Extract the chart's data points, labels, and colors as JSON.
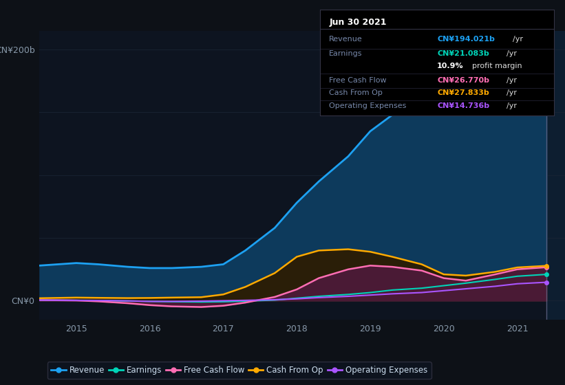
{
  "background_color": "#0d1117",
  "plot_bg_color": "#0d1420",
  "years": [
    2014.5,
    2015.0,
    2015.3,
    2015.7,
    2016.0,
    2016.3,
    2016.7,
    2017.0,
    2017.3,
    2017.7,
    2018.0,
    2018.3,
    2018.7,
    2019.0,
    2019.3,
    2019.7,
    2020.0,
    2020.3,
    2020.7,
    2021.0,
    2021.4
  ],
  "revenue": [
    28,
    30,
    29,
    27,
    26,
    26,
    27,
    29,
    40,
    58,
    78,
    95,
    115,
    135,
    148,
    158,
    163,
    170,
    182,
    192,
    194
  ],
  "earnings": [
    0.5,
    0.3,
    0.2,
    -0.2,
    -0.5,
    -0.8,
    -1.0,
    -0.8,
    -0.3,
    0.5,
    2.0,
    3.5,
    5.0,
    6.5,
    8.5,
    10.0,
    12.0,
    14.0,
    17.0,
    19.5,
    21
  ],
  "free_cash_flow": [
    0.5,
    0.2,
    -0.5,
    -2.0,
    -3.5,
    -4.5,
    -5.0,
    -4.0,
    -1.5,
    3.0,
    9.0,
    18.0,
    25.0,
    28.0,
    27.0,
    24.0,
    18.0,
    16.0,
    21.0,
    25.0,
    26.7
  ],
  "cash_from_op": [
    2.0,
    2.5,
    2.3,
    2.1,
    2.2,
    2.5,
    2.8,
    5.0,
    11.0,
    22.0,
    35.0,
    40.0,
    41.0,
    39.0,
    35.0,
    29.0,
    21.0,
    20.0,
    23.0,
    26.5,
    27.8
  ],
  "operating_expenses": [
    0.5,
    0.3,
    0.2,
    -0.1,
    -0.5,
    -0.5,
    -0.3,
    0.0,
    0.3,
    0.8,
    1.5,
    2.5,
    3.5,
    4.5,
    5.5,
    6.5,
    8.0,
    9.5,
    11.5,
    13.5,
    14.7
  ],
  "revenue_color": "#1da1f2",
  "earnings_color": "#00d4b8",
  "free_cash_flow_color": "#ff6eb4",
  "cash_from_op_color": "#ffaa00",
  "operating_expenses_color": "#aa55ff",
  "revenue_fill_color": "#0d3a5c",
  "free_cash_flow_fill_color": "#4a1a35",
  "cash_from_op_fill_color": "#2a1e08",
  "xlim": [
    2014.5,
    2021.65
  ],
  "ylim": [
    -15,
    215
  ],
  "xticks": [
    2015,
    2016,
    2017,
    2018,
    2019,
    2020,
    2021
  ],
  "legend_labels": [
    "Revenue",
    "Earnings",
    "Free Cash Flow",
    "Cash From Op",
    "Operating Expenses"
  ],
  "legend_colors": [
    "#1da1f2",
    "#00d4b8",
    "#ff6eb4",
    "#ffaa00",
    "#aa55ff"
  ],
  "tooltip_x": 2021.4,
  "grid_color": "#1a2535",
  "highlight_bg_color": "#0d1e30",
  "tooltip_title": "Jun 30 2021",
  "tooltip_rows": [
    {
      "label": "Revenue",
      "value": "CN¥194.021b",
      "value_color": "#1da1f2",
      "suffix": " /yr"
    },
    {
      "label": "Earnings",
      "value": "CN¥21.083b",
      "value_color": "#00d4b8",
      "suffix": " /yr"
    },
    {
      "label": "",
      "value": "10.9%",
      "value_color": "#ffffff",
      "suffix": " profit margin"
    },
    {
      "label": "Free Cash Flow",
      "value": "CN¥26.770b",
      "value_color": "#ff6eb4",
      "suffix": " /yr"
    },
    {
      "label": "Cash From Op",
      "value": "CN¥27.833b",
      "value_color": "#ffaa00",
      "suffix": " /yr"
    },
    {
      "label": "Operating Expenses",
      "value": "CN¥14.736b",
      "value_color": "#aa55ff",
      "suffix": " /yr"
    }
  ]
}
